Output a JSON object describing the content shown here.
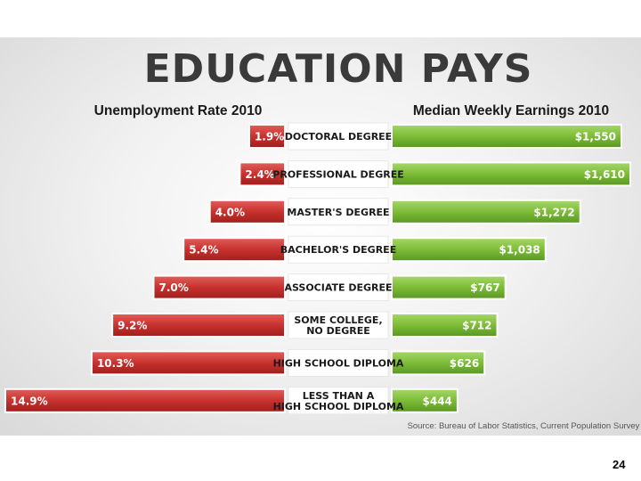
{
  "colors": {
    "red": "#c8312e",
    "green": "#7cbc36",
    "label_bg": "#ffffff"
  },
  "chart_data": {
    "type": "bar",
    "title": "EDUCATION PAYS",
    "categories": [
      "DOCTORAL DEGREE",
      "PROFESSIONAL DEGREE",
      "MASTER'S DEGREE",
      "BACHELOR'S DEGREE",
      "ASSOCIATE DEGREE",
      "SOME COLLEGE, NO DEGREE",
      "HIGH SCHOOL DIPLOMA",
      "LESS THAN A HIGH SCHOOL DIPLOMA"
    ],
    "series": [
      {
        "name": "Unemployment Rate 2010",
        "values": [
          1.9,
          2.4,
          4.0,
          5.4,
          7.0,
          9.2,
          10.3,
          14.9
        ],
        "labels": [
          "1.9%",
          "2.4%",
          "4.0%",
          "5.4%",
          "7.0%",
          "9.2%",
          "10.3%",
          "14.9%"
        ]
      },
      {
        "name": "Median Weekly Earnings 2010",
        "values": [
          1550,
          1610,
          1272,
          1038,
          767,
          712,
          626,
          444
        ],
        "labels": [
          "$1,550",
          "$1,610",
          "$1,272",
          "$1,038",
          "$767",
          "$712",
          "$626",
          "$444"
        ]
      }
    ],
    "source": "Source:  Bureau of Labor Statistics, Current Population Survey"
  },
  "page_number": "24"
}
